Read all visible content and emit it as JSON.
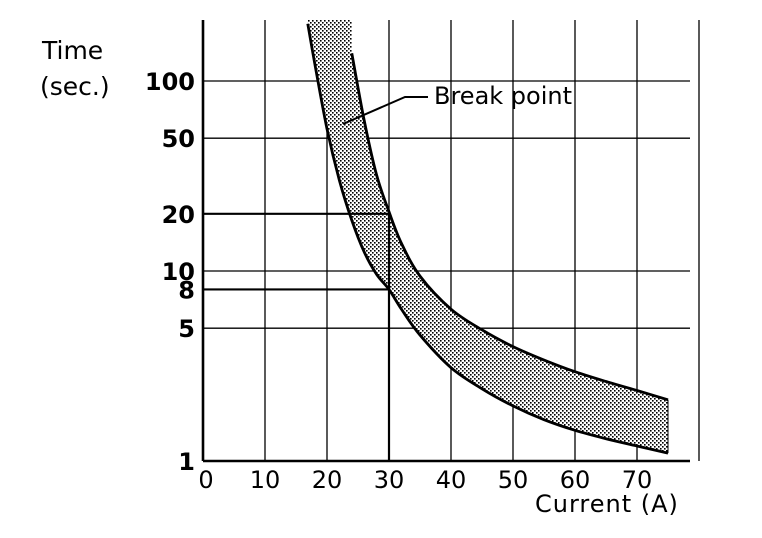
{
  "chart_data": {
    "type": "area",
    "ylabel": [
      "Time",
      "(sec.)"
    ],
    "xlabel": "Current (A)",
    "x_scale": "linear",
    "y_scale": "log",
    "xlim": [
      0,
      80
    ],
    "ylim": [
      1,
      200
    ],
    "x_ticks": [
      0,
      10,
      20,
      30,
      40,
      50,
      60,
      70
    ],
    "y_ticks": [
      1,
      5,
      8,
      10,
      20,
      50,
      100
    ],
    "grid": true,
    "band": {
      "upper": {
        "x": [
          24,
          26,
          28,
          30,
          32,
          35,
          40,
          45,
          50,
          55,
          60,
          65,
          70,
          75
        ],
        "y": [
          140,
          62,
          32,
          20.5,
          14,
          9.4,
          6.3,
          4.9,
          4,
          3.4,
          2.95,
          2.62,
          2.35,
          2.1
        ]
      },
      "lower": {
        "x": [
          16.9,
          18,
          20,
          22,
          24,
          26,
          28,
          30,
          32,
          35,
          40,
          45,
          50,
          55,
          60,
          65,
          70,
          75
        ],
        "y": [
          200,
          125,
          56,
          30,
          18.5,
          12.6,
          9.6,
          8,
          6.3,
          4.6,
          3.1,
          2.4,
          1.95,
          1.65,
          1.45,
          1.31,
          1.2,
          1.1
        ]
      },
      "fill": "dotted"
    },
    "reference_lines": [
      {
        "x": 30,
        "y": 20
      },
      {
        "x": 30,
        "y": 8
      }
    ],
    "annotation": "Break point"
  }
}
